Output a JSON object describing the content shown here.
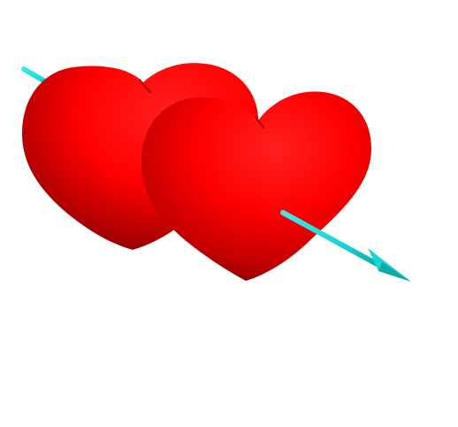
{
  "scene": {
    "background_color": "#ffffff",
    "objects": [
      {
        "name": "back-heart",
        "color": "#ff0000"
      },
      {
        "name": "front-heart",
        "color": "#ff0000"
      },
      {
        "name": "arrow",
        "color": "#19d4d4"
      }
    ]
  },
  "colors": {
    "heart_highlight": "#ff2a2a",
    "heart_base": "#f00000",
    "heart_shadow": "#8a0000",
    "heart_deep_shadow": "#6a0000",
    "arrow_cyan": "#19d4d4",
    "arrow_cyan_dark": "#0fa9a9"
  }
}
